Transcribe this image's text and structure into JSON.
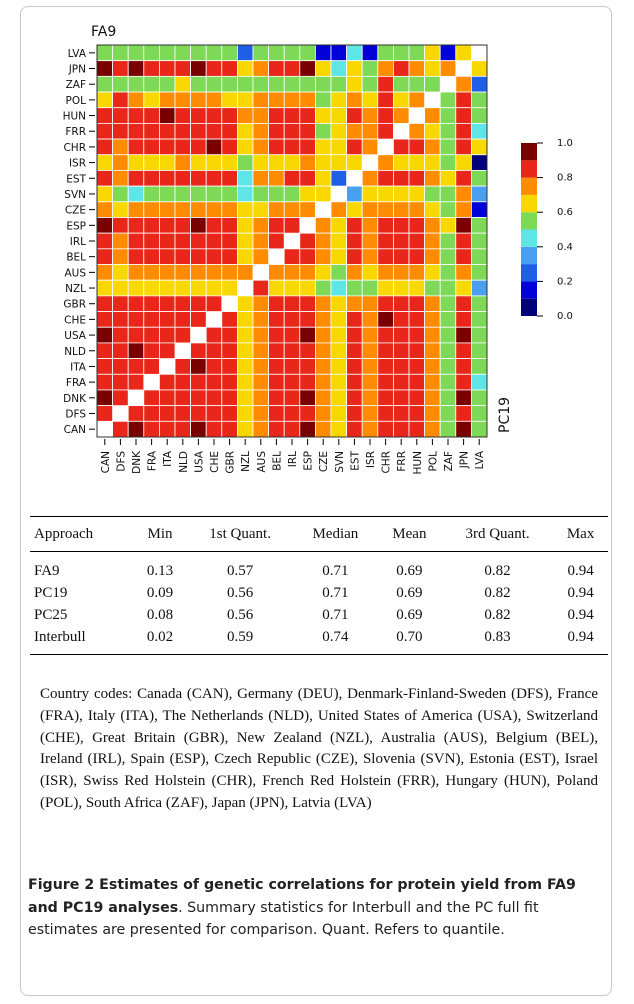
{
  "chart_data": {
    "type": "heatmap",
    "label_top": "FA9",
    "label_right": "PC19",
    "x_categories": [
      "CAN",
      "DFS",
      "DNK",
      "FRA",
      "ITA",
      "NLD",
      "USA",
      "CHE",
      "GBR",
      "NZL",
      "AUS",
      "BEL",
      "IRL",
      "ESP",
      "CZE",
      "SVN",
      "EST",
      "ISR",
      "CHR",
      "FRR",
      "HUN",
      "POL",
      "ZAF",
      "JPN",
      "LVA"
    ],
    "y_categories": [
      "LVA",
      "JPN",
      "ZAF",
      "POL",
      "HUN",
      "FRR",
      "CHR",
      "ISR",
      "EST",
      "SVN",
      "CZE",
      "ESP",
      "IRL",
      "BEL",
      "AUS",
      "NZL",
      "GBR",
      "CHE",
      "USA",
      "NLD",
      "ITA",
      "FRA",
      "DNK",
      "DFS",
      "CAN"
    ],
    "z": [
      [
        0.55,
        0.55,
        0.55,
        0.55,
        0.55,
        0.55,
        0.55,
        0.55,
        0.55,
        0.25,
        0.55,
        0.55,
        0.55,
        0.55,
        0.15,
        0.15,
        0.45,
        0.15,
        0.55,
        0.55,
        0.55,
        0.65,
        0.15,
        0.65,
        null
      ],
      [
        0.95,
        0.85,
        0.95,
        0.85,
        0.85,
        0.85,
        0.95,
        0.85,
        0.85,
        0.65,
        0.75,
        0.85,
        0.85,
        0.95,
        0.65,
        0.45,
        0.65,
        0.55,
        0.75,
        0.85,
        0.75,
        0.65,
        0.75,
        null,
        0.65
      ],
      [
        0.55,
        0.55,
        0.55,
        0.55,
        0.55,
        0.65,
        0.55,
        0.55,
        0.55,
        0.55,
        0.55,
        0.55,
        0.55,
        0.55,
        0.55,
        0.55,
        0.65,
        0.55,
        0.85,
        0.55,
        0.55,
        0.55,
        null,
        0.75,
        0.25
      ],
      [
        0.65,
        0.85,
        0.75,
        0.65,
        0.75,
        0.75,
        0.75,
        0.75,
        0.65,
        0.65,
        0.75,
        0.75,
        0.75,
        0.75,
        0.55,
        0.65,
        0.75,
        0.65,
        0.85,
        0.65,
        0.75,
        null,
        0.55,
        0.85,
        0.55
      ],
      [
        0.85,
        0.85,
        0.85,
        0.85,
        0.95,
        0.85,
        0.85,
        0.85,
        0.85,
        0.75,
        0.75,
        0.85,
        0.85,
        0.85,
        0.65,
        0.65,
        0.85,
        0.75,
        0.85,
        0.75,
        null,
        0.75,
        0.55,
        0.85,
        0.55
      ],
      [
        0.85,
        0.85,
        0.85,
        0.85,
        0.85,
        0.85,
        0.85,
        0.85,
        0.85,
        0.65,
        0.75,
        0.85,
        0.85,
        0.85,
        0.55,
        0.65,
        0.75,
        0.75,
        0.85,
        null,
        0.75,
        0.65,
        0.55,
        0.85,
        0.45
      ],
      [
        0.85,
        0.75,
        0.85,
        0.85,
        0.85,
        0.85,
        0.85,
        0.95,
        0.85,
        0.65,
        0.75,
        0.85,
        0.85,
        0.85,
        0.65,
        0.65,
        0.85,
        0.75,
        null,
        0.85,
        0.85,
        0.75,
        0.55,
        0.85,
        0.65
      ],
      [
        0.65,
        0.75,
        0.65,
        0.65,
        0.65,
        0.75,
        0.65,
        0.65,
        0.65,
        0.55,
        0.65,
        0.65,
        0.65,
        0.75,
        0.65,
        0.65,
        0.65,
        null,
        0.75,
        0.65,
        0.65,
        0.65,
        0.55,
        0.65,
        0.05
      ],
      [
        0.85,
        0.75,
        0.85,
        0.85,
        0.85,
        0.85,
        0.85,
        0.85,
        0.85,
        0.45,
        0.75,
        0.75,
        0.85,
        0.85,
        0.65,
        0.25,
        null,
        0.75,
        0.85,
        0.85,
        0.85,
        0.75,
        0.65,
        0.85,
        0.55
      ],
      [
        0.65,
        0.55,
        0.45,
        0.55,
        0.55,
        0.55,
        0.55,
        0.55,
        0.55,
        0.45,
        0.55,
        0.55,
        0.55,
        0.65,
        0.65,
        null,
        0.35,
        0.65,
        0.65,
        0.65,
        0.65,
        0.55,
        0.55,
        0.75,
        0.35
      ],
      [
        0.75,
        0.65,
        0.75,
        0.75,
        0.75,
        0.75,
        0.75,
        0.75,
        0.75,
        0.65,
        0.65,
        0.75,
        0.75,
        0.75,
        null,
        0.75,
        0.65,
        0.75,
        0.75,
        0.75,
        0.75,
        0.65,
        0.55,
        0.75,
        0.15
      ],
      [
        0.95,
        0.85,
        0.85,
        0.85,
        0.85,
        0.85,
        0.95,
        0.85,
        0.85,
        0.65,
        0.75,
        0.85,
        0.85,
        null,
        0.75,
        0.65,
        0.85,
        0.75,
        0.85,
        0.85,
        0.85,
        0.75,
        0.65,
        0.95,
        0.55
      ],
      [
        0.85,
        0.75,
        0.85,
        0.85,
        0.85,
        0.85,
        0.85,
        0.85,
        0.85,
        0.65,
        0.75,
        0.85,
        null,
        0.85,
        0.75,
        0.65,
        0.85,
        0.75,
        0.85,
        0.85,
        0.85,
        0.75,
        0.55,
        0.85,
        0.55
      ],
      [
        0.85,
        0.75,
        0.85,
        0.85,
        0.85,
        0.85,
        0.85,
        0.85,
        0.85,
        0.65,
        0.75,
        null,
        0.85,
        0.85,
        0.75,
        0.65,
        0.85,
        0.75,
        0.85,
        0.85,
        0.85,
        0.75,
        0.55,
        0.85,
        0.55
      ],
      [
        0.75,
        0.65,
        0.75,
        0.75,
        0.75,
        0.75,
        0.75,
        0.75,
        0.75,
        0.75,
        null,
        0.75,
        0.75,
        0.75,
        0.65,
        0.55,
        0.75,
        0.65,
        0.75,
        0.75,
        0.75,
        0.65,
        0.55,
        0.75,
        0.55
      ],
      [
        0.65,
        0.65,
        0.65,
        0.65,
        0.65,
        0.65,
        0.65,
        0.65,
        0.65,
        null,
        0.85,
        0.65,
        0.65,
        0.65,
        0.55,
        0.45,
        0.55,
        0.55,
        0.65,
        0.65,
        0.65,
        0.55,
        0.55,
        0.65,
        0.35
      ],
      [
        0.85,
        0.85,
        0.85,
        0.85,
        0.85,
        0.85,
        0.85,
        0.85,
        null,
        0.65,
        0.75,
        0.85,
        0.85,
        0.85,
        0.75,
        0.65,
        0.75,
        0.75,
        0.85,
        0.85,
        0.85,
        0.75,
        0.55,
        0.85,
        0.55
      ],
      [
        0.85,
        0.85,
        0.85,
        0.85,
        0.85,
        0.85,
        0.85,
        null,
        0.85,
        0.65,
        0.75,
        0.85,
        0.85,
        0.85,
        0.75,
        0.65,
        0.85,
        0.75,
        0.95,
        0.85,
        0.85,
        0.75,
        0.55,
        0.85,
        0.55
      ],
      [
        0.95,
        0.85,
        0.85,
        0.85,
        0.85,
        0.85,
        null,
        0.85,
        0.85,
        0.65,
        0.75,
        0.85,
        0.85,
        0.95,
        0.75,
        0.65,
        0.85,
        0.75,
        0.85,
        0.85,
        0.85,
        0.75,
        0.55,
        0.95,
        0.55
      ],
      [
        0.85,
        0.85,
        0.95,
        0.85,
        0.85,
        null,
        0.85,
        0.85,
        0.85,
        0.65,
        0.75,
        0.85,
        0.85,
        0.85,
        0.75,
        0.65,
        0.85,
        0.75,
        0.85,
        0.85,
        0.85,
        0.75,
        0.55,
        0.85,
        0.55
      ],
      [
        0.85,
        0.85,
        0.85,
        0.85,
        null,
        0.85,
        0.95,
        0.85,
        0.85,
        0.65,
        0.75,
        0.85,
        0.85,
        0.85,
        0.75,
        0.65,
        0.85,
        0.75,
        0.85,
        0.85,
        0.85,
        0.75,
        0.55,
        0.85,
        0.55
      ],
      [
        0.85,
        0.85,
        0.85,
        null,
        0.85,
        0.85,
        0.85,
        0.85,
        0.85,
        0.65,
        0.75,
        0.85,
        0.85,
        0.85,
        0.75,
        0.65,
        0.85,
        0.75,
        0.85,
        0.85,
        0.85,
        0.75,
        0.55,
        0.85,
        0.45
      ],
      [
        0.95,
        0.85,
        null,
        0.85,
        0.85,
        0.85,
        0.85,
        0.85,
        0.85,
        0.65,
        0.75,
        0.85,
        0.85,
        0.95,
        0.75,
        0.65,
        0.85,
        0.75,
        0.85,
        0.85,
        0.85,
        0.75,
        0.55,
        0.95,
        0.55
      ],
      [
        0.85,
        null,
        0.85,
        0.85,
        0.85,
        0.85,
        0.85,
        0.85,
        0.85,
        0.65,
        0.75,
        0.85,
        0.85,
        0.85,
        0.75,
        0.65,
        0.85,
        0.75,
        0.85,
        0.85,
        0.85,
        0.75,
        0.55,
        0.85,
        0.55
      ],
      [
        null,
        0.85,
        0.95,
        0.85,
        0.85,
        0.85,
        0.95,
        0.85,
        0.85,
        0.65,
        0.75,
        0.85,
        0.85,
        0.95,
        0.75,
        0.65,
        0.85,
        0.75,
        0.85,
        0.85,
        0.85,
        0.75,
        0.55,
        0.95,
        0.55
      ]
    ],
    "zlim": [
      0,
      1
    ],
    "zticks": [
      {
        "value": 0,
        "label": "0.0"
      },
      0.2,
      0.4,
      0.6,
      0.8,
      {
        "value": 1,
        "label": "1.0"
      }
    ],
    "colors": [
      "#00007a",
      "#0000d8",
      "#1f5fe8",
      "#4aa0f0",
      "#5ee6e6",
      "#7ed957",
      "#f8d800",
      "#ff8c00",
      "#e8261a",
      "#7a0000"
    ]
  },
  "table": {
    "header": [
      "Approach",
      "Min",
      "1st Quant.",
      "Median",
      "Mean",
      "3rd Quant.",
      "Max"
    ],
    "rows": [
      [
        "FA9",
        "0.13",
        "0.57",
        "0.71",
        "0.69",
        "0.82",
        "0.94"
      ],
      [
        "PC19",
        "0.09",
        "0.56",
        "0.71",
        "0.69",
        "0.82",
        "0.94"
      ],
      [
        "PC25",
        "0.08",
        "0.56",
        "0.71",
        "0.69",
        "0.82",
        "0.94"
      ],
      [
        "Interbull",
        "0.02",
        "0.59",
        "0.74",
        "0.70",
        "0.83",
        "0.94"
      ]
    ]
  },
  "note": "Country codes: Canada (CAN), Germany (DEU), Denmark-Finland-Sweden (DFS), France (FRA), Italy (ITA), The Netherlands (NLD), United States of America (USA), Switzerland (CHE), Great Britain (GBR), New Zealand (NZL), Australia (AUS), Belgium (BEL), Ireland (IRL), Spain (ESP), Czech Republic (CZE), Slovenia (SVN), Estonia (EST), Israel (ISR), Swiss Red Holstein (CHR), French Red Holstein (FRR), Hungary (HUN), Poland (POL), South Africa (ZAF), Japan (JPN), Latvia (LVA)",
  "caption": {
    "title": "Figure 2 Estimates of genetic correlations for protein yield from FA9 and PC19 analyses",
    "text": ". Summary statistics for Interbull and the PC full fit estimates are presented for comparison. Quant. Refers to quantile."
  }
}
